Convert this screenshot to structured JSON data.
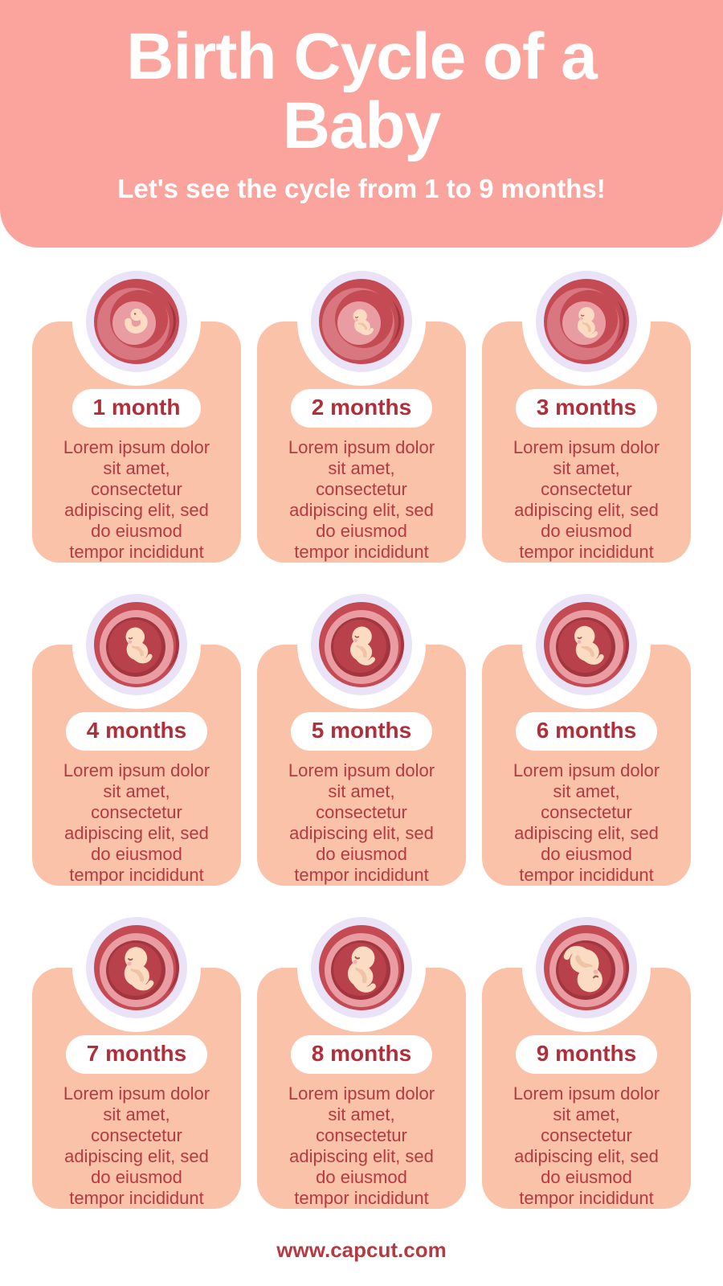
{
  "header": {
    "title_lines": [
      "Birth Cycle of a",
      "Baby"
    ],
    "subtitle": "Let's see the cycle from 1 to 9 months!"
  },
  "cards": [
    {
      "label": "1 month",
      "illustration": "embryo-in-womb",
      "body_lines": [
        "Lorem ipsum dolor",
        "sit amet,",
        "consectetur",
        "adipiscing elit, sed",
        "do eiusmod",
        "tempor incididunt"
      ]
    },
    {
      "label": "2 months",
      "illustration": "fetus-in-womb",
      "body_lines": [
        "Lorem ipsum dolor",
        "sit amet,",
        "consectetur",
        "adipiscing elit, sed",
        "do eiusmod",
        "tempor incididunt"
      ]
    },
    {
      "label": "3 months",
      "illustration": "fetus-in-womb",
      "body_lines": [
        "Lorem ipsum dolor",
        "sit amet,",
        "consectetur",
        "adipiscing elit, sed",
        "do eiusmod",
        "tempor incididunt"
      ]
    },
    {
      "label": "4 months",
      "illustration": "fetus-in-womb",
      "body_lines": [
        "Lorem ipsum dolor",
        "sit amet,",
        "consectetur",
        "adipiscing elit, sed",
        "do eiusmod",
        "tempor incididunt"
      ]
    },
    {
      "label": "5 months",
      "illustration": "fetus-in-womb",
      "body_lines": [
        "Lorem ipsum dolor",
        "sit amet,",
        "consectetur",
        "adipiscing elit, sed",
        "do eiusmod",
        "tempor incididunt"
      ]
    },
    {
      "label": "6 months",
      "illustration": "fetus-in-womb",
      "body_lines": [
        "Lorem ipsum dolor",
        "sit amet,",
        "consectetur",
        "adipiscing elit, sed",
        "do eiusmod",
        "tempor incididunt"
      ]
    },
    {
      "label": "7 months",
      "illustration": "fetus-in-womb",
      "body_lines": [
        "Lorem ipsum dolor",
        "sit amet,",
        "consectetur",
        "adipiscing elit, sed",
        "do eiusmod",
        "tempor incididunt"
      ]
    },
    {
      "label": "8 months",
      "illustration": "fetus-in-womb",
      "body_lines": [
        "Lorem ipsum dolor",
        "sit amet,",
        "consectetur",
        "adipiscing elit, sed",
        "do eiusmod",
        "tempor incididunt"
      ]
    },
    {
      "label": "9 months",
      "illustration": "baby-in-womb",
      "body_lines": [
        "Lorem ipsum dolor",
        "sit amet,",
        "consectetur",
        "adipiscing elit, sed",
        "do eiusmod",
        "tempor incididunt"
      ]
    }
  ],
  "footer": {
    "url": "www.capcut.com"
  },
  "colors": {
    "header_bg": "#FAA49D",
    "card_bg": "#F9C2A9",
    "text_red": "#B43A43",
    "pill_text": "#B02F3A",
    "pill_bg": "#FFFFFF",
    "womb_ring_lavender": "#EAE2F6",
    "womb_red": "#C44A54",
    "womb_mid_pink": "#D97780",
    "womb_light_pink": "#E99CA2",
    "womb_dark_red": "#A3353F",
    "fetus_skin": "#FBDCC2",
    "fetus_cheek": "#F3AFB6"
  }
}
